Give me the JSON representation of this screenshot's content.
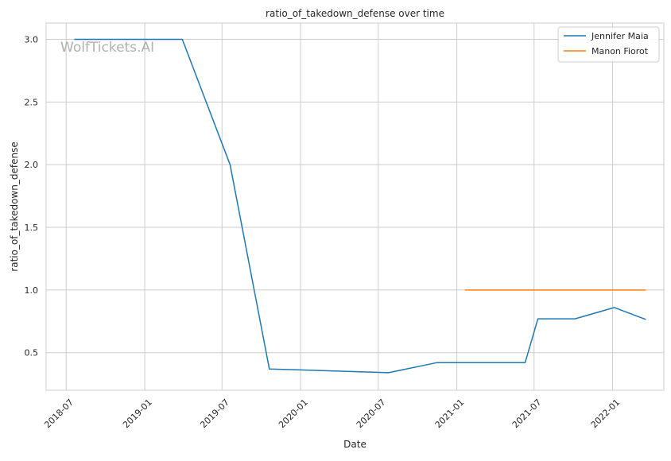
{
  "chart_data": {
    "type": "line",
    "title": "ratio_of_takedown_defense over time",
    "xlabel": "Date",
    "ylabel": "ratio_of_takedown_defense",
    "watermark": "WolfTickets.AI",
    "x_ticks": [
      "2018-07",
      "2019-01",
      "2019-07",
      "2020-01",
      "2020-07",
      "2021-01",
      "2021-07",
      "2022-01"
    ],
    "y_ticks": [
      "0.5",
      "1.0",
      "1.5",
      "2.0",
      "2.5",
      "3.0"
    ],
    "xlim": [
      "2018-05-15",
      "2022-05-01"
    ],
    "ylim": [
      0.2,
      3.13
    ],
    "grid": true,
    "legend_position": "top-right",
    "series": [
      {
        "name": "Jennifer Maia",
        "color": "#1f77b4",
        "points": [
          {
            "x": "2018-07-20",
            "y": 3.0
          },
          {
            "x": "2019-03-30",
            "y": 3.0
          },
          {
            "x": "2019-07-20",
            "y": 2.0
          },
          {
            "x": "2019-10-20",
            "y": 0.37
          },
          {
            "x": "2020-07-25",
            "y": 0.34
          },
          {
            "x": "2020-11-15",
            "y": 0.42
          },
          {
            "x": "2021-06-10",
            "y": 0.42
          },
          {
            "x": "2021-07-10",
            "y": 0.77
          },
          {
            "x": "2021-10-05",
            "y": 0.77
          },
          {
            "x": "2022-01-05",
            "y": 0.86
          },
          {
            "x": "2022-03-20",
            "y": 0.765
          }
        ]
      },
      {
        "name": "Manon Fiorot",
        "color": "#ff7f0e",
        "points": [
          {
            "x": "2021-01-20",
            "y": 1.0
          },
          {
            "x": "2022-03-20",
            "y": 1.0
          }
        ]
      }
    ]
  }
}
